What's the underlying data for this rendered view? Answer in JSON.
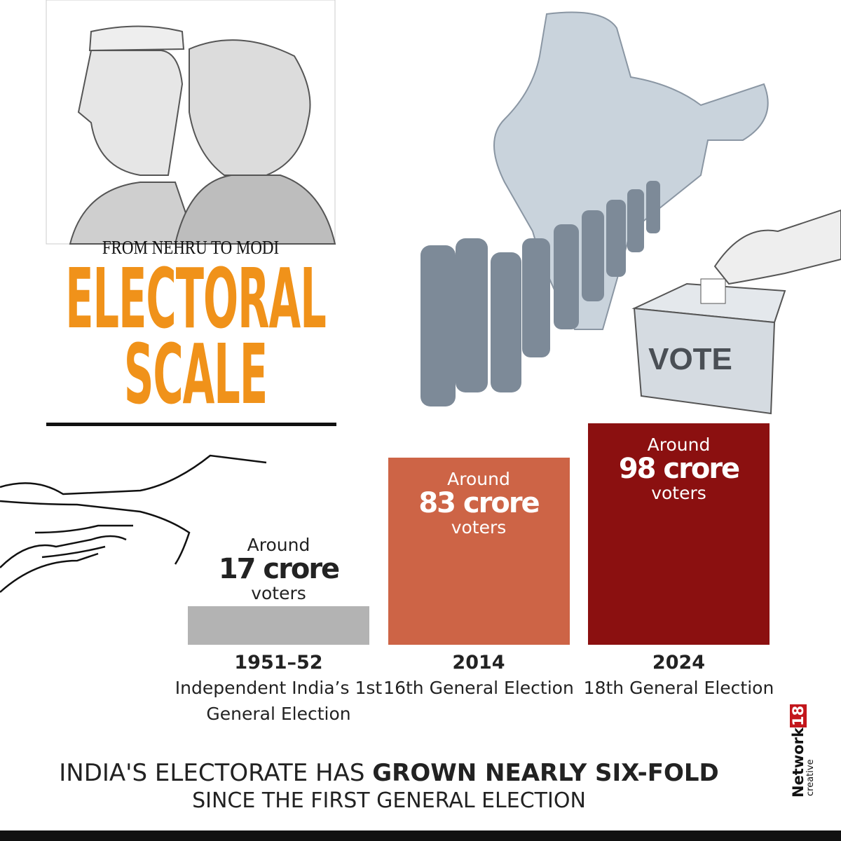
{
  "chart_data": {
    "type": "bar",
    "supertitle": "FROM NEHRU TO MODI",
    "title": "ELECTORAL SCALE",
    "categories": [
      "1951–52",
      "2014",
      "2024"
    ],
    "category_descriptions": [
      "Independent India’s 1st General Election",
      "16th General Election",
      "18th General Election"
    ],
    "values": [
      17,
      83,
      98
    ],
    "value_labels": [
      "17 crore",
      "83 crore",
      "98 crore"
    ],
    "label_prefix": "Around",
    "label_suffix": "voters",
    "colors": [
      "#b3b3b3",
      "#cd6446",
      "#8b1010"
    ],
    "footer": {
      "lead": "INDIA'S ELECTORATE HAS",
      "emphasis": "GROWN NEARLY SIX-FOLD",
      "tail": "SINCE THE FIRST GENERAL ELECTION"
    }
  },
  "illustration": {
    "ballot_label": "VOTE"
  },
  "brand": {
    "name": "Network",
    "number": "18",
    "sub": "creative"
  }
}
